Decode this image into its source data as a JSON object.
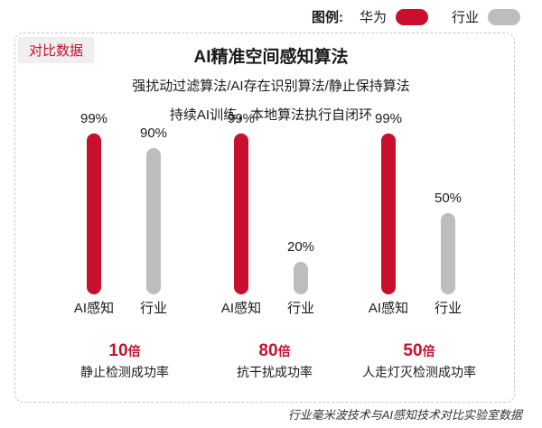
{
  "legend": {
    "title": "图例:",
    "items": [
      {
        "name": "华为",
        "color": "#c8102e"
      },
      {
        "name": "行业",
        "color": "#bdbdbd"
      }
    ]
  },
  "tag": "对比数据",
  "headline": {
    "title": "AI精准空间感知算法",
    "line2": "强扰动过滤算法/AI存在识别算法/静止保持算法",
    "line3": "持续AI训练，本地算法执行自闭环"
  },
  "chart_data": {
    "type": "bar",
    "groups": [
      {
        "categories": [
          "AI感知",
          "行业"
        ],
        "values": [
          99,
          90
        ],
        "labels": [
          "99%",
          "90%"
        ]
      },
      {
        "categories": [
          "AI感知",
          "行业"
        ],
        "values": [
          99,
          20
        ],
        "labels": [
          "99%",
          "20%"
        ]
      },
      {
        "categories": [
          "AI感知",
          "行业"
        ],
        "values": [
          99,
          50
        ],
        "labels": [
          "99%",
          "50%"
        ]
      }
    ],
    "colors": [
      "#c8102e",
      "#bdbdbd"
    ],
    "ylim": [
      0,
      100
    ]
  },
  "stats": [
    {
      "number": "10",
      "unit": "倍",
      "desc": "静止检测成功率"
    },
    {
      "number": "80",
      "unit": "倍",
      "desc": "抗干扰成功率"
    },
    {
      "number": "50",
      "unit": "倍",
      "desc": "人走灯灭检测成功率"
    }
  ],
  "source": "行业毫米波技术与AI感知技术对比实验室数据"
}
